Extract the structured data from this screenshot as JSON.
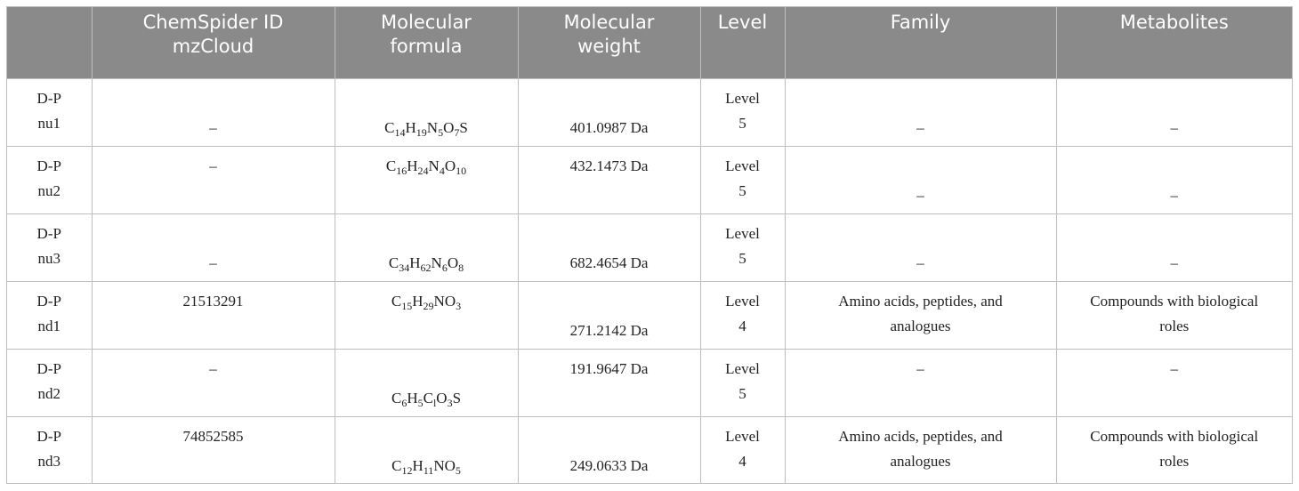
{
  "headers": [
    {
      "lines": [
        "",
        ""
      ]
    },
    {
      "lines": [
        "ChemSpider ID",
        "mzCloud"
      ]
    },
    {
      "lines": [
        "Molecular",
        "formula"
      ]
    },
    {
      "lines": [
        "Molecular",
        "weight"
      ]
    },
    {
      "lines": [
        "Level",
        ""
      ]
    },
    {
      "lines": [
        "Family",
        ""
      ]
    },
    {
      "lines": [
        "Metabolites",
        ""
      ]
    }
  ],
  "rows": [
    {
      "id": [
        "D-P",
        "nu1"
      ],
      "chemspider": "–",
      "formula": [
        [
          "C",
          "14"
        ],
        [
          "H",
          "19"
        ],
        [
          "N",
          "5"
        ],
        [
          "O",
          "7"
        ],
        [
          "S",
          ""
        ]
      ],
      "weight": "401.0987 Da",
      "level": [
        "Level",
        "5"
      ],
      "family": [
        "–",
        ""
      ],
      "metabolites": [
        "–",
        ""
      ]
    },
    {
      "id": [
        "D-P",
        "nu2"
      ],
      "chemspider": "–",
      "formula": [
        [
          "C",
          "16"
        ],
        [
          "H",
          "24"
        ],
        [
          "N",
          "4"
        ],
        [
          "O",
          "10"
        ]
      ],
      "weight": "432.1473 Da",
      "level": [
        "Level",
        "5"
      ],
      "family": [
        "–",
        ""
      ],
      "metabolites": [
        "–",
        ""
      ]
    },
    {
      "id": [
        "D-P",
        "nu3"
      ],
      "chemspider": "–",
      "formula": [
        [
          "C",
          "34"
        ],
        [
          "H",
          "62"
        ],
        [
          "N",
          "6"
        ],
        [
          "O",
          "8"
        ]
      ],
      "weight": "682.4654 Da",
      "level": [
        "Level",
        "5"
      ],
      "family": [
        "–",
        ""
      ],
      "metabolites": [
        "–",
        ""
      ]
    },
    {
      "id": [
        "D-P",
        "nd1"
      ],
      "chemspider": "21513291",
      "formula": [
        [
          "C",
          "15"
        ],
        [
          "H",
          "29"
        ],
        [
          "N",
          ""
        ],
        [
          "O",
          "3"
        ]
      ],
      "weight": "271.2142 Da",
      "level": [
        "Level",
        "4"
      ],
      "family": [
        "Amino acids, peptides, and",
        "analogues"
      ],
      "metabolites": [
        "Compounds with biological",
        "roles"
      ]
    },
    {
      "id": [
        "D-P",
        "nd2"
      ],
      "chemspider": "–",
      "formula": [
        [
          "C",
          "6"
        ],
        [
          "H",
          "5"
        ],
        [
          "C",
          "l"
        ],
        [
          "O",
          "3"
        ],
        [
          "S",
          ""
        ]
      ],
      "weight": "191.9647 Da",
      "level": [
        "Level",
        "5"
      ],
      "family": [
        "–",
        ""
      ],
      "metabolites": [
        "–",
        ""
      ]
    },
    {
      "id": [
        "D-P",
        "nd3"
      ],
      "chemspider": "74852585",
      "formula": [
        [
          "C",
          "12"
        ],
        [
          "H",
          "11"
        ],
        [
          "N",
          ""
        ],
        [
          "O",
          "5"
        ]
      ],
      "weight": "249.0633 Da",
      "level": [
        "Level",
        "4"
      ],
      "family": [
        "Amino acids, peptides, and",
        "analogues"
      ],
      "metabolites": [
        "Compounds with biological",
        "roles"
      ]
    }
  ]
}
